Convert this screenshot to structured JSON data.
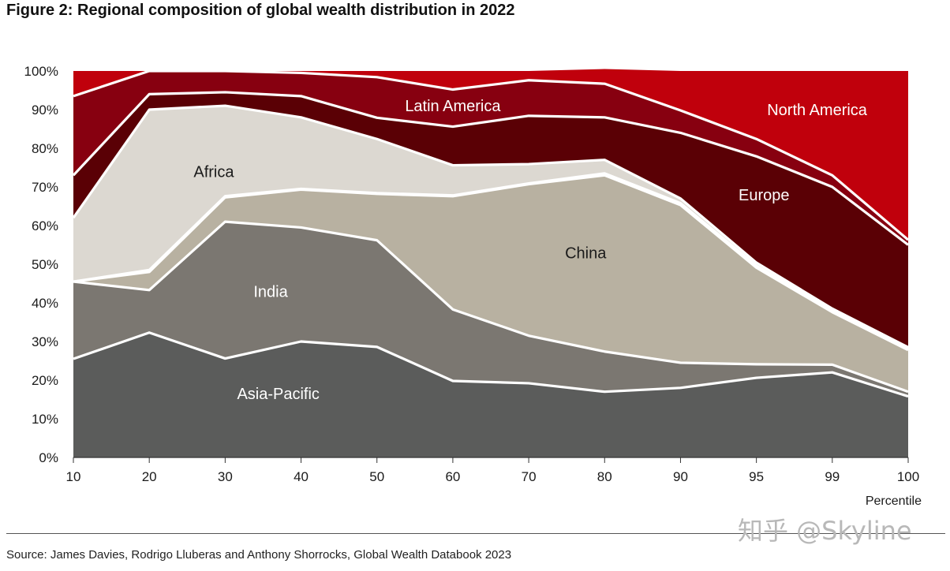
{
  "title": "Figure 2: Regional composition of global wealth distribution in 2022",
  "source": "Source: James Davies, Rodrigo Lluberas and Anthony Shorrocks, Global Wealth Databook 2023",
  "watermark": "知乎 @Skyline",
  "chart_data": {
    "type": "area",
    "stacked": true,
    "title": "Figure 2: Regional composition of global wealth distribution in 2022",
    "xlabel": "Percentile",
    "ylabel": "",
    "x": [
      "10",
      "20",
      "30",
      "40",
      "50",
      "60",
      "70",
      "80",
      "90",
      "95",
      "99",
      "100"
    ],
    "y_ticks": [
      "0%",
      "10%",
      "20%",
      "30%",
      "40%",
      "50%",
      "60%",
      "70%",
      "80%",
      "90%",
      "100%"
    ],
    "ylim": [
      0,
      100
    ],
    "grid": false,
    "legend": "labels inside areas",
    "series": [
      {
        "name": "Asia-Pacific",
        "color": "#5b5c5b",
        "label_color": "#ffffff",
        "values": [
          25.5,
          32.3,
          25.6,
          30.0,
          28.6,
          19.8,
          19.2,
          17.0,
          18.0,
          20.6,
          22.0,
          15.8
        ]
      },
      {
        "name": "India",
        "color": "#7b7771",
        "label_color": "#ffffff",
        "values": [
          20.0,
          11.0,
          35.4,
          29.5,
          27.6,
          18.5,
          12.3,
          10.4,
          6.5,
          3.5,
          2.0,
          1.2
        ]
      },
      {
        "name": "",
        "color": "#b8b1a1",
        "label_color": "#1a1a1a",
        "values": [
          0.0,
          4.7,
          6.3,
          9.8,
          12.0,
          29.3,
          39.2,
          45.6,
          40.8,
          25.0,
          13.6,
          10.8
        ]
      },
      {
        "name": "China",
        "color": "#b8b1a1",
        "label_color": "#1a1a1a",
        "values": [
          0.0,
          0.5,
          0.3,
          0.2,
          0.2,
          0.2,
          0.2,
          0.5,
          0.5,
          0.5,
          0.4,
          0.4
        ]
      },
      {
        "name": "Africa",
        "color": "#dcd8d1",
        "label_color": "#1a1a1a",
        "values": [
          16.5,
          41.5,
          23.4,
          18.5,
          14.0,
          7.8,
          5.0,
          3.5,
          1.2,
          0.8,
          0.5,
          0.3
        ]
      },
      {
        "name": "",
        "color": "#5a0005",
        "label_color": "#ffffff",
        "values": [
          11.0,
          4.0,
          3.5,
          5.5,
          5.5,
          10.0,
          12.5,
          11.0,
          17.0,
          27.5,
          31.5,
          26.5
        ]
      },
      {
        "name": "Latin America",
        "color": "#870010",
        "label_color": "#ffffff",
        "values": [
          20.5,
          6.0,
          5.5,
          6.0,
          10.5,
          9.6,
          9.2,
          8.7,
          5.8,
          4.5,
          3.0,
          1.3
        ]
      },
      {
        "name": "North America",
        "color": "#c0000c",
        "label_color": "#ffffff",
        "values": [
          6.5,
          0.0,
          0.0,
          0.5,
          1.6,
          4.8,
          2.4,
          3.8,
          10.2,
          17.6,
          27.0,
          43.7
        ]
      }
    ],
    "area_labels": [
      {
        "text": "Asia-Pacific",
        "series": "Asia-Pacific"
      },
      {
        "text": "India",
        "series": "India"
      },
      {
        "text": "China",
        "series": "China"
      },
      {
        "text": "Africa",
        "series": "Africa"
      },
      {
        "text": "Europe",
        "series": ""
      },
      {
        "text": "Latin America",
        "series": "Latin America"
      },
      {
        "text": "North America",
        "series": "North America"
      }
    ]
  }
}
